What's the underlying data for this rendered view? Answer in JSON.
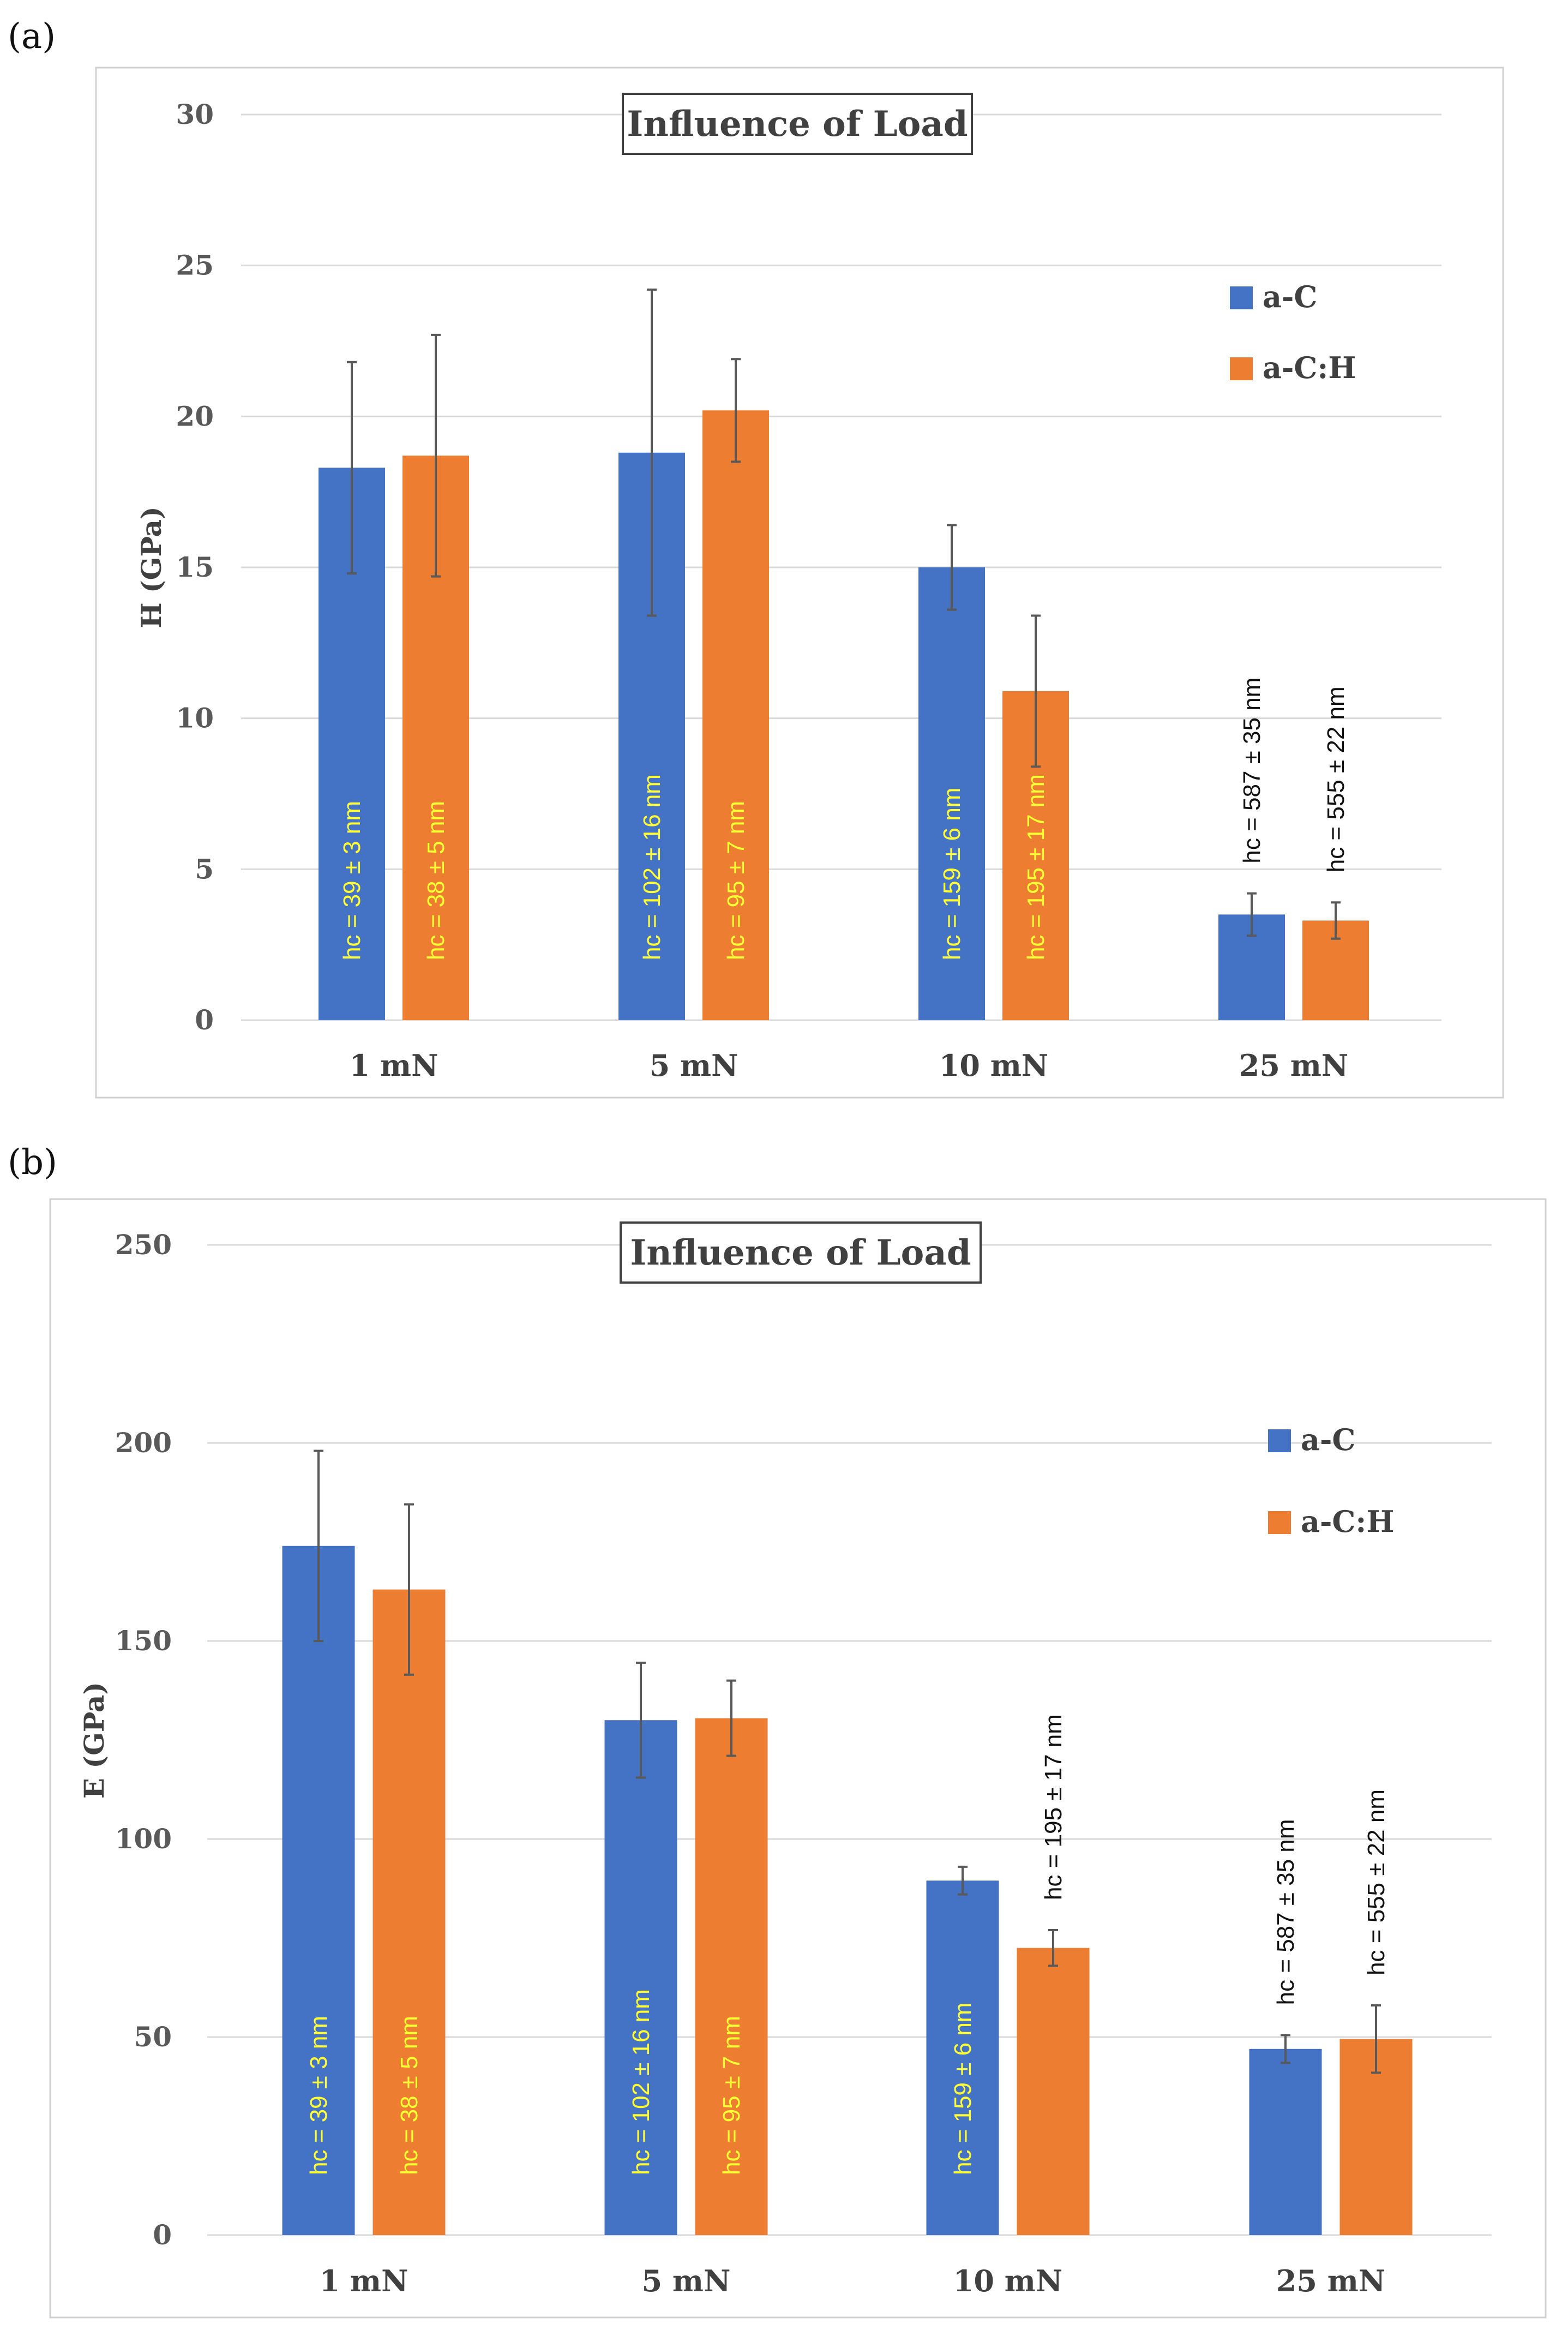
{
  "chart_data": [
    {
      "panel_label": "(a)",
      "type": "bar",
      "title": "Influence of Load",
      "xlabel": "",
      "ylabel": "H (GPa)",
      "ylim": [
        0,
        30
      ],
      "yticks": [
        0,
        5,
        10,
        15,
        20,
        25,
        30
      ],
      "grid": true,
      "legend_position": "top-right",
      "categories": [
        "1 mN",
        "5 mN",
        "10 mN",
        "25 mN"
      ],
      "series": [
        {
          "name": "a-C",
          "color": "#4472C4",
          "values": [
            18.3,
            18.8,
            15.0,
            3.5
          ],
          "errors": [
            3.5,
            5.4,
            1.4,
            0.7
          ],
          "labels": [
            "hc = 39 ± 3 nm",
            "hc = 102 ± 16 nm",
            "hc = 159 ± 6 nm",
            "hc = 587 ± 35 nm"
          ]
        },
        {
          "name": "a-C:H",
          "color": "#ED7D31",
          "values": [
            18.7,
            20.2,
            10.9,
            3.3
          ],
          "errors": [
            4.0,
            1.7,
            2.5,
            0.6
          ],
          "labels": [
            "hc = 38 ± 5 nm",
            "hc = 95 ± 7 nm",
            "hc = 195 ± 17 nm",
            "hc = 555 ± 22 nm"
          ]
        }
      ]
    },
    {
      "panel_label": "(b)",
      "type": "bar",
      "title": "Influence of Load",
      "xlabel": "",
      "ylabel": "E (GPa)",
      "ylim": [
        0,
        250
      ],
      "yticks": [
        0,
        50,
        100,
        150,
        200,
        250
      ],
      "grid": true,
      "legend_position": "top-right",
      "categories": [
        "1 mN",
        "5 mN",
        "10 mN",
        "25 mN"
      ],
      "series": [
        {
          "name": "a-C",
          "color": "#4472C4",
          "values": [
            174,
            130,
            89.5,
            47
          ],
          "errors": [
            24,
            14.5,
            3.5,
            3.5
          ],
          "labels": [
            "hc = 39 ± 3 nm",
            "hc = 102 ± 16 nm",
            "hc = 159 ± 6 nm",
            "hc = 587 ± 35 nm"
          ]
        },
        {
          "name": "a-C:H",
          "color": "#ED7D31",
          "values": [
            163,
            130.5,
            72.5,
            49.5
          ],
          "errors": [
            21.5,
            9.5,
            4.5,
            8.5
          ],
          "labels": [
            "hc = 38 ± 5 nm",
            "hc = 95 ± 7 nm",
            "hc = 195 ± 17 nm",
            "hc = 555 ± 22 nm"
          ]
        }
      ]
    }
  ]
}
